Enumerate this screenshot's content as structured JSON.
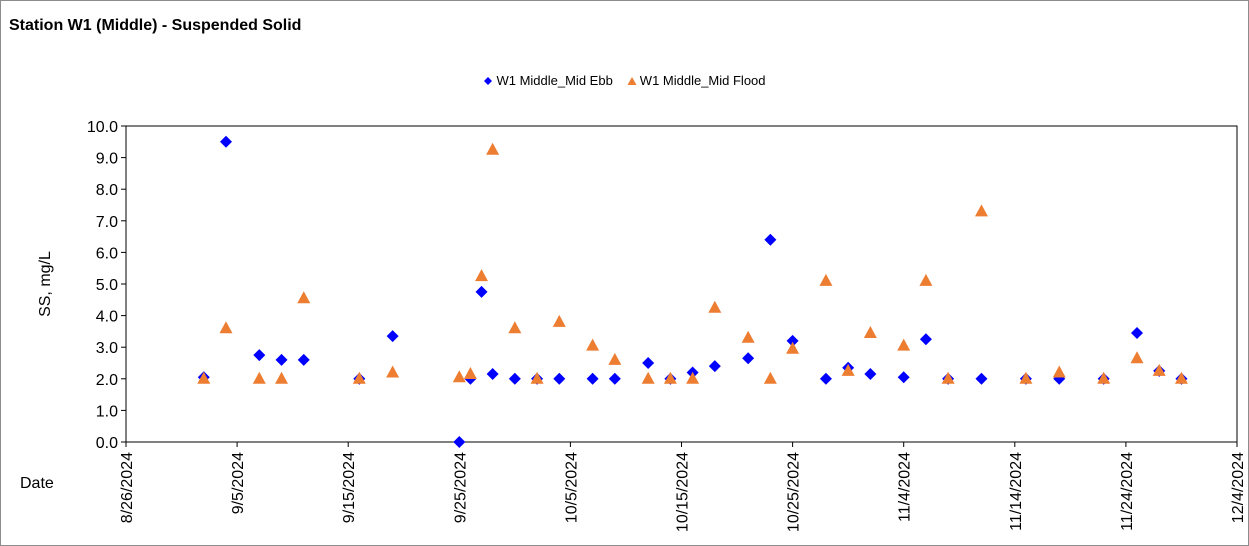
{
  "chart_data": {
    "type": "scatter",
    "title": "Station W1 (Middle) - Suspended Solid",
    "xlabel": "Date",
    "ylabel": "SS, mg/L",
    "xlim": [
      "2024-08-26",
      "2024-12-04"
    ],
    "ylim": [
      0,
      10
    ],
    "y_tick_step": 1,
    "x_tick_labels": [
      "8/26/2024",
      "9/5/2024",
      "9/15/2024",
      "9/25/2024",
      "10/5/2024",
      "10/15/2024",
      "10/25/2024",
      "11/4/2024",
      "11/14/2024",
      "11/24/2024",
      "12/4/2024"
    ],
    "y_tick_labels": [
      "0.0",
      "1.0",
      "2.0",
      "3.0",
      "4.0",
      "5.0",
      "6.0",
      "7.0",
      "8.0",
      "9.0",
      "10.0"
    ],
    "grid": false,
    "legend_position": "top",
    "series": [
      {
        "name": "W1 Middle_Mid Ebb",
        "marker": "diamond",
        "color": "#0000ff",
        "points": [
          [
            "2024-09-02",
            2.05
          ],
          [
            "2024-09-04",
            9.5
          ],
          [
            "2024-09-07",
            2.75
          ],
          [
            "2024-09-09",
            2.6
          ],
          [
            "2024-09-11",
            2.6
          ],
          [
            "2024-09-16",
            2.0
          ],
          [
            "2024-09-19",
            3.35
          ],
          [
            "2024-09-25",
            0.0
          ],
          [
            "2024-09-26",
            2.0
          ],
          [
            "2024-09-27",
            4.75
          ],
          [
            "2024-09-28",
            2.15
          ],
          [
            "2024-09-30",
            2.0
          ],
          [
            "2024-10-02",
            2.0
          ],
          [
            "2024-10-04",
            2.0
          ],
          [
            "2024-10-07",
            2.0
          ],
          [
            "2024-10-09",
            2.0
          ],
          [
            "2024-10-12",
            2.5
          ],
          [
            "2024-10-14",
            2.0
          ],
          [
            "2024-10-16",
            2.2
          ],
          [
            "2024-10-18",
            2.4
          ],
          [
            "2024-10-21",
            2.65
          ],
          [
            "2024-10-23",
            6.4
          ],
          [
            "2024-10-25",
            3.2
          ],
          [
            "2024-10-28",
            2.0
          ],
          [
            "2024-10-30",
            2.35
          ],
          [
            "2024-11-01",
            2.15
          ],
          [
            "2024-11-04",
            2.05
          ],
          [
            "2024-11-06",
            3.25
          ],
          [
            "2024-11-08",
            2.0
          ],
          [
            "2024-11-11",
            2.0
          ],
          [
            "2024-11-15",
            2.0
          ],
          [
            "2024-11-18",
            2.0
          ],
          [
            "2024-11-22",
            2.0
          ],
          [
            "2024-11-25",
            3.45
          ],
          [
            "2024-11-27",
            2.25
          ],
          [
            "2024-11-29",
            2.0
          ]
        ]
      },
      {
        "name": "W1 Middle_Mid Flood",
        "marker": "triangle",
        "color": "#ed7d31",
        "points": [
          [
            "2024-09-02",
            2.0
          ],
          [
            "2024-09-04",
            3.6
          ],
          [
            "2024-09-07",
            2.0
          ],
          [
            "2024-09-09",
            2.0
          ],
          [
            "2024-09-11",
            4.55
          ],
          [
            "2024-09-16",
            2.0
          ],
          [
            "2024-09-19",
            2.2
          ],
          [
            "2024-09-25",
            2.05
          ],
          [
            "2024-09-26",
            2.15
          ],
          [
            "2024-09-27",
            5.25
          ],
          [
            "2024-09-28",
            9.25
          ],
          [
            "2024-09-30",
            3.6
          ],
          [
            "2024-10-02",
            2.0
          ],
          [
            "2024-10-04",
            3.8
          ],
          [
            "2024-10-07",
            3.05
          ],
          [
            "2024-10-09",
            2.6
          ],
          [
            "2024-10-12",
            2.0
          ],
          [
            "2024-10-14",
            2.0
          ],
          [
            "2024-10-16",
            2.0
          ],
          [
            "2024-10-18",
            4.25
          ],
          [
            "2024-10-21",
            3.3
          ],
          [
            "2024-10-23",
            2.0
          ],
          [
            "2024-10-25",
            2.95
          ],
          [
            "2024-10-28",
            5.1
          ],
          [
            "2024-10-30",
            2.25
          ],
          [
            "2024-11-01",
            3.45
          ],
          [
            "2024-11-04",
            3.05
          ],
          [
            "2024-11-06",
            5.1
          ],
          [
            "2024-11-08",
            2.0
          ],
          [
            "2024-11-11",
            7.3
          ],
          [
            "2024-11-15",
            2.0
          ],
          [
            "2024-11-18",
            2.2
          ],
          [
            "2024-11-22",
            2.0
          ],
          [
            "2024-11-25",
            2.65
          ],
          [
            "2024-11-27",
            2.25
          ],
          [
            "2024-11-29",
            2.0
          ]
        ]
      }
    ]
  }
}
